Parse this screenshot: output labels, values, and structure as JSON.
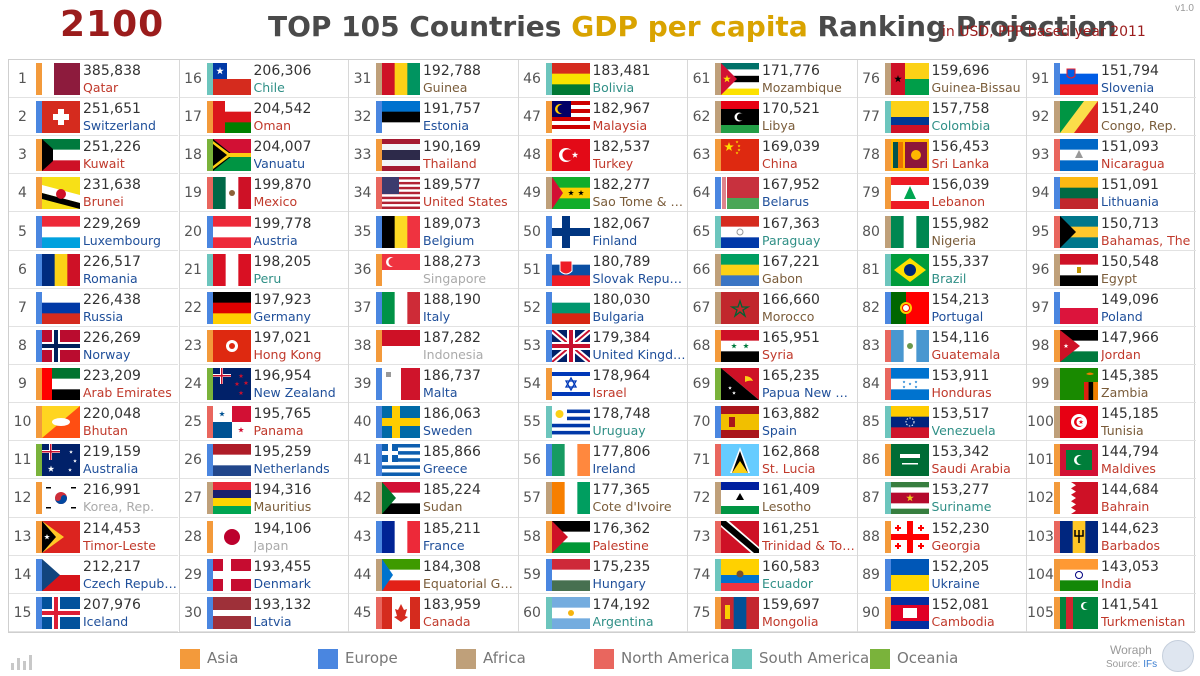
{
  "year": "2100",
  "title": {
    "prefix": "TOP 105 Countries ",
    "highlight": "GDP per capita",
    "suffix": " Ranking Projection"
  },
  "subtitle": "in USD, PPP based year 2011",
  "version": "v1.0",
  "legend": [
    {
      "label": "Asia",
      "color": "#f39a3b"
    },
    {
      "label": "Europe",
      "color": "#4a86e0"
    },
    {
      "label": "Africa",
      "color": "#bfa07a"
    },
    {
      "label": "North America",
      "color": "#e9665e"
    },
    {
      "label": "South America",
      "color": "#6cc5bd"
    },
    {
      "label": "Oceania",
      "color": "#7ab33b"
    }
  ],
  "brand": "Woraph",
  "source": {
    "label": "Source: ",
    "name": "IFs"
  },
  "chart_data": {
    "type": "table",
    "title": "TOP 105 Countries GDP per capita Ranking Projection",
    "subtitle": "in USD, PPP based year 2011",
    "year": "2100",
    "columns": [
      "rank",
      "value",
      "country",
      "continent"
    ],
    "rows": [
      {
        "rank": 1,
        "value": "385,838",
        "country": "Qatar",
        "continent": "Asia"
      },
      {
        "rank": 2,
        "value": "251,651",
        "country": "Switzerland",
        "continent": "Europe"
      },
      {
        "rank": 3,
        "value": "251,226",
        "country": "Kuwait",
        "continent": "Asia"
      },
      {
        "rank": 4,
        "value": "231,638",
        "country": "Brunei",
        "continent": "Asia"
      },
      {
        "rank": 5,
        "value": "229,269",
        "country": "Luxembourg",
        "continent": "Europe"
      },
      {
        "rank": 6,
        "value": "226,517",
        "country": "Romania",
        "continent": "Europe"
      },
      {
        "rank": 7,
        "value": "226,438",
        "country": "Russia",
        "continent": "Europe"
      },
      {
        "rank": 8,
        "value": "226,269",
        "country": "Norway",
        "continent": "Europe"
      },
      {
        "rank": 9,
        "value": "223,209",
        "country": "Arab Emirates",
        "continent": "Asia"
      },
      {
        "rank": 10,
        "value": "220,048",
        "country": "Bhutan",
        "continent": "Asia"
      },
      {
        "rank": 11,
        "value": "219,159",
        "country": "Australia",
        "continent": "Oceania"
      },
      {
        "rank": 12,
        "value": "216,991",
        "country": "Korea, Rep.",
        "continent": "Asia"
      },
      {
        "rank": 13,
        "value": "214,453",
        "country": "Timor-Leste",
        "continent": "Asia"
      },
      {
        "rank": 14,
        "value": "212,217",
        "country": "Czech Republic",
        "continent": "Europe"
      },
      {
        "rank": 15,
        "value": "207,976",
        "country": "Iceland",
        "continent": "Europe"
      },
      {
        "rank": 16,
        "value": "206,306",
        "country": "Chile",
        "continent": "South America"
      },
      {
        "rank": 17,
        "value": "204,542",
        "country": "Oman",
        "continent": "Asia"
      },
      {
        "rank": 18,
        "value": "204,007",
        "country": "Vanuatu",
        "continent": "Oceania"
      },
      {
        "rank": 19,
        "value": "199,870",
        "country": "Mexico",
        "continent": "North America"
      },
      {
        "rank": 20,
        "value": "199,778",
        "country": "Austria",
        "continent": "Europe"
      },
      {
        "rank": 21,
        "value": "198,205",
        "country": "Peru",
        "continent": "South America"
      },
      {
        "rank": 22,
        "value": "197,923",
        "country": "Germany",
        "continent": "Europe"
      },
      {
        "rank": 23,
        "value": "197,021",
        "country": "Hong Kong",
        "continent": "Asia"
      },
      {
        "rank": 24,
        "value": "196,954",
        "country": "New Zealand",
        "continent": "Oceania"
      },
      {
        "rank": 25,
        "value": "195,765",
        "country": "Panama",
        "continent": "North America"
      },
      {
        "rank": 26,
        "value": "195,259",
        "country": "Netherlands",
        "continent": "Europe"
      },
      {
        "rank": 27,
        "value": "194,316",
        "country": "Mauritius",
        "continent": "Africa"
      },
      {
        "rank": 28,
        "value": "194,106",
        "country": "Japan",
        "continent": "Asia"
      },
      {
        "rank": 29,
        "value": "193,455",
        "country": "Denmark",
        "continent": "Europe"
      },
      {
        "rank": 30,
        "value": "193,132",
        "country": "Latvia",
        "continent": "Europe"
      },
      {
        "rank": 31,
        "value": "192,788",
        "country": "Guinea",
        "continent": "Africa"
      },
      {
        "rank": 32,
        "value": "191,757",
        "country": "Estonia",
        "continent": "Europe"
      },
      {
        "rank": 33,
        "value": "190,169",
        "country": "Thailand",
        "continent": "Asia"
      },
      {
        "rank": 34,
        "value": "189,577",
        "country": "United States",
        "continent": "North America"
      },
      {
        "rank": 35,
        "value": "189,073",
        "country": "Belgium",
        "continent": "Europe"
      },
      {
        "rank": 36,
        "value": "188,273",
        "country": "Singapore",
        "continent": "Asia"
      },
      {
        "rank": 37,
        "value": "188,190",
        "country": "Italy",
        "continent": "Europe"
      },
      {
        "rank": 38,
        "value": "187,282",
        "country": "Indonesia",
        "continent": "Asia"
      },
      {
        "rank": 39,
        "value": "186,737",
        "country": "Malta",
        "continent": "Europe"
      },
      {
        "rank": 40,
        "value": "186,063",
        "country": "Sweden",
        "continent": "Europe"
      },
      {
        "rank": 41,
        "value": "185,866",
        "country": "Greece",
        "continent": "Europe"
      },
      {
        "rank": 42,
        "value": "185,224",
        "country": "Sudan",
        "continent": "Africa"
      },
      {
        "rank": 43,
        "value": "185,211",
        "country": "France",
        "continent": "Europe"
      },
      {
        "rank": 44,
        "value": "184,308",
        "country": "Equatorial Guin...",
        "continent": "Africa"
      },
      {
        "rank": 45,
        "value": "183,959",
        "country": "Canada",
        "continent": "North America"
      },
      {
        "rank": 46,
        "value": "183,481",
        "country": "Bolivia",
        "continent": "South America"
      },
      {
        "rank": 47,
        "value": "182,967",
        "country": "Malaysia",
        "continent": "Asia"
      },
      {
        "rank": 48,
        "value": "182,537",
        "country": "Turkey",
        "continent": "Asia"
      },
      {
        "rank": 49,
        "value": "182,277",
        "country": "Sao Tome & Pri...",
        "continent": "Africa"
      },
      {
        "rank": 50,
        "value": "182,067",
        "country": "Finland",
        "continent": "Europe"
      },
      {
        "rank": 51,
        "value": "180,789",
        "country": "Slovak Republic",
        "continent": "Europe"
      },
      {
        "rank": 52,
        "value": "180,030",
        "country": "Bulgaria",
        "continent": "Europe"
      },
      {
        "rank": 53,
        "value": "179,384",
        "country": "United Kingdom",
        "continent": "Europe"
      },
      {
        "rank": 54,
        "value": "178,964",
        "country": "Israel",
        "continent": "Asia"
      },
      {
        "rank": 55,
        "value": "178,748",
        "country": "Uruguay",
        "continent": "South America"
      },
      {
        "rank": 56,
        "value": "177,806",
        "country": "Ireland",
        "continent": "Europe"
      },
      {
        "rank": 57,
        "value": "177,365",
        "country": "Cote d'Ivoire",
        "continent": "Africa"
      },
      {
        "rank": 58,
        "value": "176,362",
        "country": "Palestine",
        "continent": "Asia"
      },
      {
        "rank": 59,
        "value": "175,235",
        "country": "Hungary",
        "continent": "Europe"
      },
      {
        "rank": 60,
        "value": "174,192",
        "country": "Argentina",
        "continent": "South America"
      },
      {
        "rank": 61,
        "value": "171,776",
        "country": "Mozambique",
        "continent": "Africa"
      },
      {
        "rank": 62,
        "value": "170,521",
        "country": "Libya",
        "continent": "Africa"
      },
      {
        "rank": 63,
        "value": "169,039",
        "country": "China",
        "continent": "Asia"
      },
      {
        "rank": 64,
        "value": "167,952",
        "country": "Belarus",
        "continent": "Europe"
      },
      {
        "rank": 65,
        "value": "167,363",
        "country": "Paraguay",
        "continent": "South America"
      },
      {
        "rank": 66,
        "value": "167,221",
        "country": "Gabon",
        "continent": "Africa"
      },
      {
        "rank": 67,
        "value": "166,660",
        "country": "Morocco",
        "continent": "Africa"
      },
      {
        "rank": 68,
        "value": "165,951",
        "country": "Syria",
        "continent": "Asia"
      },
      {
        "rank": 69,
        "value": "165,235",
        "country": "Papua New Gui...",
        "continent": "Oceania"
      },
      {
        "rank": 70,
        "value": "163,882",
        "country": "Spain",
        "continent": "Europe"
      },
      {
        "rank": 71,
        "value": "162,868",
        "country": "St. Lucia",
        "continent": "North America"
      },
      {
        "rank": 72,
        "value": "161,409",
        "country": "Lesotho",
        "continent": "Africa"
      },
      {
        "rank": 73,
        "value": "161,251",
        "country": "Trinidad & Toba...",
        "continent": "North America"
      },
      {
        "rank": 74,
        "value": "160,583",
        "country": "Ecuador",
        "continent": "South America"
      },
      {
        "rank": 75,
        "value": "159,697",
        "country": "Mongolia",
        "continent": "Asia"
      },
      {
        "rank": 76,
        "value": "159,696",
        "country": "Guinea-Bissau",
        "continent": "Africa"
      },
      {
        "rank": 77,
        "value": "157,758",
        "country": "Colombia",
        "continent": "South America"
      },
      {
        "rank": 78,
        "value": "156,453",
        "country": "Sri Lanka",
        "continent": "Asia"
      },
      {
        "rank": 79,
        "value": "156,039",
        "country": "Lebanon",
        "continent": "Asia"
      },
      {
        "rank": 80,
        "value": "155,982",
        "country": "Nigeria",
        "continent": "Africa"
      },
      {
        "rank": 81,
        "value": "155,337",
        "country": "Brazil",
        "continent": "South America"
      },
      {
        "rank": 82,
        "value": "154,213",
        "country": "Portugal",
        "continent": "Europe"
      },
      {
        "rank": 83,
        "value": "154,116",
        "country": "Guatemala",
        "continent": "North America"
      },
      {
        "rank": 84,
        "value": "153,911",
        "country": "Honduras",
        "continent": "North America"
      },
      {
        "rank": 85,
        "value": "153,517",
        "country": "Venezuela",
        "continent": "South America"
      },
      {
        "rank": 86,
        "value": "153,342",
        "country": "Saudi Arabia",
        "continent": "Asia"
      },
      {
        "rank": 87,
        "value": "153,277",
        "country": "Suriname",
        "continent": "South America"
      },
      {
        "rank": 88,
        "value": "152,230",
        "country": "Georgia",
        "continent": "Asia"
      },
      {
        "rank": 89,
        "value": "152,205",
        "country": "Ukraine",
        "continent": "Europe"
      },
      {
        "rank": 90,
        "value": "152,081",
        "country": "Cambodia",
        "continent": "Asia"
      },
      {
        "rank": 91,
        "value": "151,794",
        "country": "Slovenia",
        "continent": "Europe"
      },
      {
        "rank": 92,
        "value": "151,240",
        "country": "Congo, Rep.",
        "continent": "Africa"
      },
      {
        "rank": 93,
        "value": "151,093",
        "country": "Nicaragua",
        "continent": "North America"
      },
      {
        "rank": 94,
        "value": "151,091",
        "country": "Lithuania",
        "continent": "Europe"
      },
      {
        "rank": 95,
        "value": "150,713",
        "country": "Bahamas, The",
        "continent": "North America"
      },
      {
        "rank": 96,
        "value": "150,548",
        "country": "Egypt",
        "continent": "Africa"
      },
      {
        "rank": 97,
        "value": "149,096",
        "country": "Poland",
        "continent": "Europe"
      },
      {
        "rank": 98,
        "value": "147,966",
        "country": "Jordan",
        "continent": "Asia"
      },
      {
        "rank": 99,
        "value": "145,385",
        "country": "Zambia",
        "continent": "Africa"
      },
      {
        "rank": 100,
        "value": "145,185",
        "country": "Tunisia",
        "continent": "Africa"
      },
      {
        "rank": 101,
        "value": "144,794",
        "country": "Maldives",
        "continent": "Asia"
      },
      {
        "rank": 102,
        "value": "144,684",
        "country": "Bahrain",
        "continent": "Asia"
      },
      {
        "rank": 103,
        "value": "144,623",
        "country": "Barbados",
        "continent": "North America"
      },
      {
        "rank": 104,
        "value": "143,053",
        "country": "India",
        "continent": "Asia"
      },
      {
        "rank": 105,
        "value": "141,541",
        "country": "Turkmenistan",
        "continent": "Asia"
      }
    ]
  }
}
